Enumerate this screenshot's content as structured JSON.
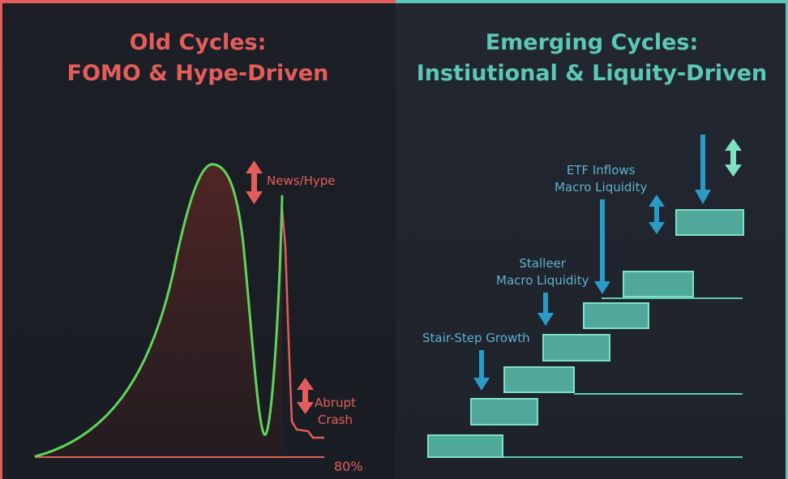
{
  "colors": {
    "old_accent": "#e35d5b",
    "new_accent": "#5cc7b5",
    "curve_green": "#5fd45c",
    "crash_red": "#e35d5b",
    "arrow_blue": "#2a9bc6",
    "arrow_mint": "#7fe0c2",
    "step_fill": "#4fa89a",
    "label_blue": "#5fb2cc"
  },
  "left_panel": {
    "title_line1": "Old Cycles:",
    "title_line2": "FOMO & Hype-Driven",
    "news_label": "News/Hype",
    "crash_label_line1": "Abrupt",
    "crash_label_line2": "Crash",
    "percent_label": "80%"
  },
  "right_panel": {
    "title_line1": "Emerging Cycles:",
    "title_line2": "Instiutional & Liquity-Driven",
    "stair_label": "Stair-Step Growth",
    "stalleer_label_line1": "Stalleer",
    "stalleer_label_line2": "Macro Liquidity",
    "etf_label_line1": "ETF Inflows",
    "etf_label_line2": "Macro Liquidity"
  }
}
